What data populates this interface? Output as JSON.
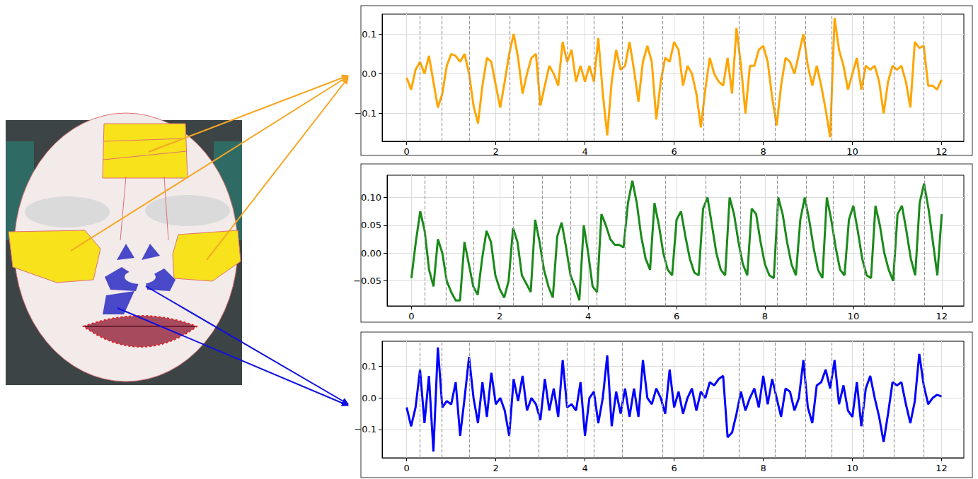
{
  "chart_data": [
    {
      "type": "line",
      "color": "#ffa500",
      "grid": true,
      "xlim": [
        -0.55,
        12.5
      ],
      "xticks": [
        0,
        2,
        4,
        6,
        8,
        10,
        12
      ],
      "ylim": [
        -0.17,
        0.15
      ],
      "yticks": [
        {
          "value": -0.1,
          "label": "−0.1"
        },
        {
          "value": 0,
          "label": "0.0"
        },
        0.1
      ],
      "vlines": [
        0.3,
        0.78,
        1.4,
        2.31,
        2.96,
        3.6,
        4.2,
        4.83,
        5.74,
        6.66,
        7.45,
        8.27,
        8.94,
        9.54,
        10.25,
        10.94,
        11.6
      ],
      "x": [
        0,
        0.1,
        0.2,
        0.3,
        0.4,
        0.5,
        0.6,
        0.7,
        0.8,
        0.9,
        1,
        1.1,
        1.2,
        1.3,
        1.4,
        1.5,
        1.6,
        1.7,
        1.8,
        1.9,
        2,
        2.1,
        2.2,
        2.3,
        2.4,
        2.5,
        2.6,
        2.7,
        2.8,
        2.9,
        3,
        3.1,
        3.2,
        3.3,
        3.4,
        3.5,
        3.6,
        3.7,
        3.8,
        3.9,
        4,
        4.1,
        4.2,
        4.3,
        4.4,
        4.5,
        4.6,
        4.7,
        4.8,
        4.9,
        5,
        5.1,
        5.2,
        5.3,
        5.4,
        5.5,
        5.6,
        5.7,
        5.8,
        5.9,
        6,
        6.1,
        6.2,
        6.3,
        6.4,
        6.5,
        6.6,
        6.7,
        6.8,
        6.9,
        7,
        7.1,
        7.2,
        7.3,
        7.4,
        7.5,
        7.6,
        7.7,
        7.8,
        7.9,
        8,
        8.1,
        8.2,
        8.3,
        8.4,
        8.5,
        8.6,
        8.7,
        8.8,
        8.9,
        9,
        9.1,
        9.2,
        9.3,
        9.4,
        9.5,
        9.6,
        9.7,
        9.8,
        9.9,
        10,
        10.1,
        10.2,
        10.3,
        10.4,
        10.5,
        10.6,
        10.7,
        10.8,
        10.9,
        11,
        11.1,
        11.2,
        11.3,
        11.4,
        11.5,
        11.6,
        11.7,
        11.8,
        11.9,
        12
      ],
      "values": [
        -0.01,
        -0.04,
        0.01,
        0.03,
        0.0,
        0.045,
        -0.02,
        -0.085,
        -0.05,
        0.02,
        0.05,
        0.045,
        0.03,
        0.05,
        0.0,
        -0.08,
        -0.125,
        -0.03,
        0.04,
        0.03,
        -0.03,
        -0.085,
        -0.02,
        0.05,
        0.1,
        0.04,
        -0.05,
        0.0,
        0.04,
        0.05,
        -0.08,
        -0.03,
        0.02,
        0.0,
        -0.03,
        0.08,
        0.03,
        0.06,
        -0.02,
        0.02,
        -0.02,
        0.02,
        -0.02,
        0.09,
        -0.05,
        -0.155,
        -0.02,
        0.06,
        0.01,
        0.02,
        0.08,
        0.01,
        -0.07,
        0.03,
        0.07,
        0.03,
        -0.115,
        -0.02,
        0.04,
        0.03,
        0.08,
        0.06,
        -0.03,
        0.02,
        0.0,
        -0.05,
        -0.135,
        -0.04,
        0.04,
        0.0,
        -0.02,
        -0.03,
        0.04,
        -0.05,
        0.115,
        0.02,
        -0.1,
        0.02,
        0.02,
        0.06,
        0.07,
        0.03,
        -0.06,
        -0.13,
        -0.03,
        0.04,
        0.03,
        0.0,
        0.05,
        0.1,
        0.02,
        -0.03,
        0.02,
        -0.03,
        -0.09,
        -0.16,
        0.14,
        0.06,
        0.02,
        -0.04,
        0.0,
        0.04,
        -0.04,
        0.02,
        0.01,
        0.02,
        -0.02,
        -0.1,
        -0.02,
        0.02,
        0.01,
        0.02,
        -0.02,
        -0.085,
        0.08,
        0.065,
        0.07,
        -0.03,
        -0.03,
        -0.04,
        -0.015
      ]
    },
    {
      "type": "line",
      "color": "#1a8a1a",
      "grid": true,
      "xlim": [
        -0.55,
        12.5
      ],
      "xticks": [
        0,
        2,
        4,
        6,
        8,
        10,
        12
      ],
      "ylim": [
        -0.095,
        0.14
      ],
      "yticks": [
        {
          "value": -0.05,
          "label": "−0.05"
        },
        {
          "value": 0,
          "label": "0.00"
        },
        0.05,
        {
          "value": 0.1,
          "label": "0.10"
        }
      ],
      "vlines": [
        0.3,
        0.78,
        1.4,
        2.31,
        2.96,
        3.6,
        4.2,
        4.83,
        5.74,
        6.66,
        7.45,
        8.27,
        8.94,
        9.54,
        10.25,
        10.94,
        11.6
      ],
      "x": [
        0,
        0.1,
        0.2,
        0.3,
        0.4,
        0.5,
        0.6,
        0.7,
        0.8,
        0.9,
        1,
        1.1,
        1.2,
        1.3,
        1.4,
        1.5,
        1.6,
        1.7,
        1.8,
        1.9,
        2,
        2.1,
        2.2,
        2.3,
        2.4,
        2.5,
        2.6,
        2.7,
        2.8,
        2.9,
        3,
        3.1,
        3.2,
        3.3,
        3.4,
        3.5,
        3.6,
        3.7,
        3.8,
        3.9,
        4,
        4.1,
        4.2,
        4.3,
        4.4,
        4.5,
        4.6,
        4.7,
        4.8,
        4.9,
        5,
        5.1,
        5.2,
        5.3,
        5.4,
        5.5,
        5.6,
        5.7,
        5.8,
        5.9,
        6,
        6.1,
        6.2,
        6.3,
        6.4,
        6.5,
        6.6,
        6.7,
        6.8,
        6.9,
        7,
        7.1,
        7.2,
        7.3,
        7.4,
        7.5,
        7.6,
        7.7,
        7.8,
        7.9,
        8,
        8.1,
        8.2,
        8.3,
        8.4,
        8.5,
        8.6,
        8.7,
        8.8,
        8.9,
        9,
        9.1,
        9.2,
        9.3,
        9.4,
        9.5,
        9.6,
        9.7,
        9.8,
        9.9,
        10,
        10.1,
        10.2,
        10.3,
        10.4,
        10.5,
        10.6,
        10.7,
        10.8,
        10.9,
        11,
        11.1,
        11.2,
        11.3,
        11.4,
        11.5,
        11.6,
        11.7,
        11.8,
        11.9,
        12
      ],
      "values": [
        -0.045,
        0.02,
        0.075,
        0.04,
        -0.03,
        -0.06,
        0.025,
        0.0,
        -0.05,
        -0.07,
        -0.085,
        -0.085,
        0.02,
        -0.02,
        -0.06,
        -0.075,
        -0.01,
        0.04,
        0.02,
        -0.04,
        -0.065,
        -0.08,
        -0.05,
        0.045,
        0.02,
        -0.04,
        -0.055,
        -0.07,
        0.06,
        0.02,
        -0.03,
        -0.06,
        -0.08,
        0.03,
        0.055,
        0.01,
        -0.04,
        -0.06,
        -0.085,
        0.05,
        0.0,
        -0.06,
        -0.07,
        0.07,
        0.05,
        0.025,
        0.015,
        0.015,
        0.01,
        0.09,
        0.13,
        0.09,
        0.03,
        -0.01,
        -0.03,
        0.09,
        0.05,
        0.0,
        -0.03,
        -0.04,
        0.06,
        0.075,
        0.03,
        -0.01,
        -0.035,
        -0.04,
        0.08,
        0.1,
        0.05,
        0.0,
        -0.03,
        -0.04,
        0.1,
        0.07,
        0.02,
        -0.02,
        -0.04,
        0.08,
        0.07,
        0.02,
        -0.02,
        -0.04,
        -0.045,
        0.1,
        0.07,
        0.02,
        -0.02,
        -0.04,
        0.06,
        0.1,
        0.06,
        0.01,
        -0.03,
        -0.045,
        0.1,
        0.06,
        0.01,
        -0.03,
        -0.04,
        0.06,
        0.085,
        0.04,
        -0.01,
        -0.04,
        -0.045,
        0.085,
        0.05,
        0.0,
        -0.03,
        -0.05,
        0.07,
        0.085,
        0.04,
        -0.01,
        -0.04,
        0.09,
        0.125,
        0.08,
        0.02,
        -0.04,
        0.07
      ]
    },
    {
      "type": "line",
      "color": "#0000ff",
      "grid": true,
      "xlim": [
        -0.55,
        12.5
      ],
      "xticks": [
        0,
        2,
        4,
        6,
        8,
        10,
        12
      ],
      "ylim": [
        -0.19,
        0.18
      ],
      "yticks": [
        {
          "value": -0.1,
          "label": "−0.1"
        },
        {
          "value": 0,
          "label": "0.0"
        },
        0.1
      ],
      "vlines": [
        0.3,
        0.78,
        1.4,
        2.31,
        2.96,
        3.6,
        4.2,
        4.83,
        5.74,
        6.66,
        7.45,
        8.27,
        8.94,
        9.54,
        10.25,
        10.94,
        11.6
      ],
      "x": [
        0,
        0.1,
        0.2,
        0.3,
        0.4,
        0.5,
        0.6,
        0.7,
        0.8,
        0.9,
        1,
        1.1,
        1.2,
        1.3,
        1.4,
        1.5,
        1.6,
        1.7,
        1.8,
        1.9,
        2,
        2.1,
        2.2,
        2.3,
        2.4,
        2.5,
        2.6,
        2.7,
        2.8,
        2.9,
        3,
        3.1,
        3.2,
        3.3,
        3.4,
        3.5,
        3.6,
        3.7,
        3.8,
        3.9,
        4,
        4.1,
        4.2,
        4.3,
        4.4,
        4.5,
        4.6,
        4.7,
        4.8,
        4.9,
        5,
        5.1,
        5.2,
        5.3,
        5.4,
        5.5,
        5.6,
        5.7,
        5.8,
        5.9,
        6,
        6.1,
        6.2,
        6.3,
        6.4,
        6.5,
        6.6,
        6.7,
        6.8,
        6.9,
        7,
        7.1,
        7.2,
        7.3,
        7.4,
        7.5,
        7.6,
        7.7,
        7.8,
        7.9,
        8,
        8.1,
        8.2,
        8.3,
        8.4,
        8.5,
        8.6,
        8.7,
        8.8,
        8.9,
        9,
        9.1,
        9.2,
        9.3,
        9.4,
        9.5,
        9.6,
        9.7,
        9.8,
        9.9,
        10,
        10.1,
        10.2,
        10.3,
        10.4,
        10.5,
        10.6,
        10.7,
        10.8,
        10.9,
        11,
        11.1,
        11.2,
        11.3,
        11.4,
        11.5,
        11.6,
        11.7,
        11.8,
        11.9,
        12
      ],
      "values": [
        -0.03,
        -0.09,
        -0.03,
        0.09,
        -0.08,
        0.07,
        -0.17,
        0.16,
        -0.03,
        -0.01,
        -0.02,
        0.05,
        -0.12,
        0.0,
        0.13,
        0.0,
        -0.08,
        0.05,
        -0.06,
        0.08,
        -0.02,
        0.0,
        -0.04,
        -0.12,
        0.06,
        -0.01,
        0.07,
        -0.04,
        0.0,
        -0.02,
        -0.07,
        0.06,
        -0.04,
        0.03,
        -0.06,
        0.12,
        -0.03,
        -0.02,
        -0.04,
        0.05,
        -0.12,
        0.0,
        0.02,
        -0.08,
        0.0,
        0.135,
        -0.09,
        0.02,
        -0.05,
        0.03,
        -0.06,
        0.03,
        -0.06,
        0.12,
        0.0,
        -0.02,
        0.03,
        0.0,
        -0.05,
        0.09,
        -0.03,
        0.02,
        -0.05,
        0.0,
        0.03,
        -0.04,
        0.02,
        0.0,
        0.05,
        0.04,
        0.06,
        0.07,
        -0.125,
        -0.11,
        -0.05,
        0.02,
        -0.04,
        0.0,
        0.03,
        -0.03,
        0.07,
        -0.02,
        0.06,
        0.0,
        -0.06,
        0.03,
        0.02,
        -0.04,
        0.0,
        0.12,
        -0.03,
        -0.08,
        0.04,
        0.05,
        0.09,
        0.03,
        0.12,
        -0.02,
        0.04,
        -0.04,
        -0.06,
        0.05,
        -0.09,
        0.03,
        0.07,
        0.0,
        -0.06,
        -0.14,
        -0.05,
        0.05,
        0.04,
        0.05,
        -0.02,
        -0.08,
        -0.01,
        0.14,
        0.04,
        -0.02,
        0.0,
        0.01,
        0.005
      ]
    }
  ]
}
